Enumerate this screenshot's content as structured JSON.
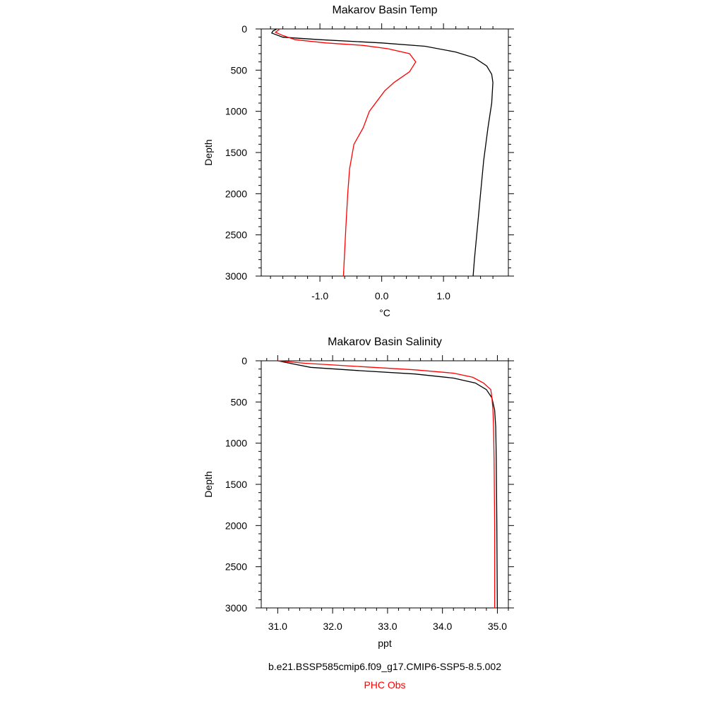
{
  "chart_data": [
    {
      "type": "line",
      "title": "Makarov Basin Temp",
      "xlabel": "°C",
      "ylabel": "Depth",
      "xlim": [
        -1.95,
        2.05
      ],
      "ylim": [
        3000,
        0
      ],
      "y_reversed": true,
      "xticks": [
        "-1.0",
        "0.0",
        "1.0"
      ],
      "xtick_values": [
        -1.0,
        0.0,
        1.0
      ],
      "yticks": [
        "0",
        "500",
        "1000",
        "1500",
        "2000",
        "2500",
        "3000"
      ],
      "ytick_values": [
        0,
        500,
        1000,
        1500,
        2000,
        2500,
        3000
      ],
      "series": [
        {
          "name": "b.e21.BSSP585cmip6.f09_g17.CMIP6-SSP5-8.5.002",
          "color": "#000000",
          "points": [
            [
              -1.7,
              0
            ],
            [
              -1.76,
              25
            ],
            [
              -1.78,
              50
            ],
            [
              -1.6,
              100
            ],
            [
              -1.0,
              130
            ],
            [
              0.0,
              170
            ],
            [
              0.7,
              210
            ],
            [
              1.2,
              280
            ],
            [
              1.5,
              350
            ],
            [
              1.7,
              450
            ],
            [
              1.78,
              550
            ],
            [
              1.8,
              650
            ],
            [
              1.78,
              900
            ],
            [
              1.72,
              1200
            ],
            [
              1.65,
              1600
            ],
            [
              1.6,
              2000
            ],
            [
              1.55,
              2400
            ],
            [
              1.5,
              2800
            ],
            [
              1.48,
              3000
            ]
          ]
        },
        {
          "name": "PHC Obs",
          "color": "#ff0000",
          "points": [
            [
              -1.65,
              0
            ],
            [
              -1.72,
              40
            ],
            [
              -1.6,
              80
            ],
            [
              -1.4,
              130
            ],
            [
              -0.9,
              170
            ],
            [
              -0.3,
              200
            ],
            [
              0.1,
              240
            ],
            [
              0.45,
              300
            ],
            [
              0.55,
              400
            ],
            [
              0.45,
              520
            ],
            [
              0.2,
              650
            ],
            [
              0.05,
              750
            ],
            [
              -0.2,
              1000
            ],
            [
              -0.3,
              1200
            ],
            [
              -0.45,
              1400
            ],
            [
              -0.52,
              1700
            ],
            [
              -0.55,
              2000
            ],
            [
              -0.58,
              2400
            ],
            [
              -0.62,
              3000
            ]
          ]
        }
      ]
    },
    {
      "type": "line",
      "title": "Makarov Basin Salinity",
      "xlabel": "ppt",
      "ylabel": "Depth",
      "xlim": [
        30.7,
        35.2
      ],
      "ylim": [
        3000,
        0
      ],
      "y_reversed": true,
      "xticks": [
        "31.0",
        "32.0",
        "33.0",
        "34.0",
        "35.0"
      ],
      "xtick_values": [
        31.0,
        32.0,
        33.0,
        34.0,
        35.0
      ],
      "yticks": [
        "0",
        "500",
        "1000",
        "1500",
        "2000",
        "2500",
        "3000"
      ],
      "ytick_values": [
        0,
        500,
        1000,
        1500,
        2000,
        2500,
        3000
      ],
      "series": [
        {
          "name": "b.e21.BSSP585cmip6.f09_g17.CMIP6-SSP5-8.5.002",
          "color": "#000000",
          "points": [
            [
              31.0,
              0
            ],
            [
              31.3,
              40
            ],
            [
              31.6,
              80
            ],
            [
              32.5,
              120
            ],
            [
              33.5,
              160
            ],
            [
              34.2,
              210
            ],
            [
              34.6,
              270
            ],
            [
              34.8,
              350
            ],
            [
              34.9,
              450
            ],
            [
              34.95,
              600
            ],
            [
              34.97,
              800
            ],
            [
              34.98,
              1200
            ],
            [
              34.99,
              2000
            ],
            [
              35.0,
              3000
            ]
          ]
        },
        {
          "name": "PHC Obs",
          "color": "#ff0000",
          "points": [
            [
              31.0,
              0
            ],
            [
              31.5,
              30
            ],
            [
              32.5,
              70
            ],
            [
              33.5,
              110
            ],
            [
              34.2,
              150
            ],
            [
              34.55,
              200
            ],
            [
              34.75,
              270
            ],
            [
              34.88,
              350
            ],
            [
              34.9,
              450
            ],
            [
              34.92,
              600
            ],
            [
              34.93,
              800
            ],
            [
              34.94,
              1200
            ],
            [
              34.95,
              2000
            ],
            [
              34.95,
              3000
            ]
          ]
        }
      ]
    }
  ],
  "legend": {
    "model": "b.e21.BSSP585cmip6.f09_g17.CMIP6-SSP5-8.5.002",
    "obs": "PHC Obs",
    "model_color": "#000000",
    "obs_color": "#ff0000"
  }
}
